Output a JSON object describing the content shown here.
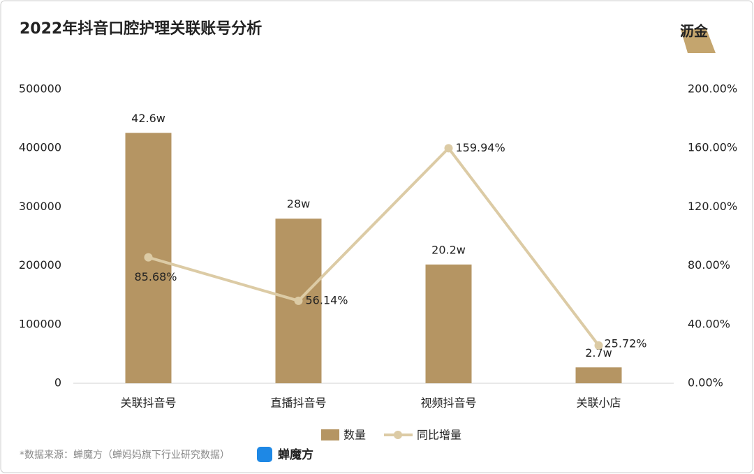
{
  "chart_data": {
    "type": "bar",
    "title": "2022年抖音口腔护理关联账号分析",
    "logo_text": "沥金",
    "categories": [
      "关联抖音号",
      "直播抖音号",
      "视频抖音号",
      "关联小店"
    ],
    "series": [
      {
        "name": "数量",
        "type": "bar",
        "color": "#b59563",
        "values": [
          426000,
          280000,
          202000,
          27000
        ],
        "value_labels": [
          "42.6w",
          "28w",
          "20.2w",
          "2.7w"
        ]
      },
      {
        "name": "同比增量",
        "type": "line",
        "axis": "y2",
        "color": "#dccba5",
        "values": [
          85.68,
          56.14,
          159.94,
          25.72
        ],
        "value_labels": [
          "85.68%",
          "56.14%",
          "159.94%",
          "25.72%"
        ]
      }
    ],
    "ylim": [
      0,
      500000
    ],
    "yticks": [
      0,
      100000,
      200000,
      300000,
      400000,
      500000
    ],
    "y2lim": [
      0,
      200
    ],
    "y2ticks": [
      {
        "value": 0,
        "label": "0.00%"
      },
      {
        "value": 40,
        "label": "40.00%"
      },
      {
        "value": 80,
        "label": "80.00%"
      },
      {
        "value": 120,
        "label": "120.00%"
      },
      {
        "value": 160,
        "label": "160.00%"
      },
      {
        "value": 200,
        "label": "200.00%"
      }
    ],
    "legend": "bottom",
    "source": "*数据来源：蝉魔方（蝉妈妈旗下行业研究数据）",
    "brand": "蝉魔方"
  }
}
